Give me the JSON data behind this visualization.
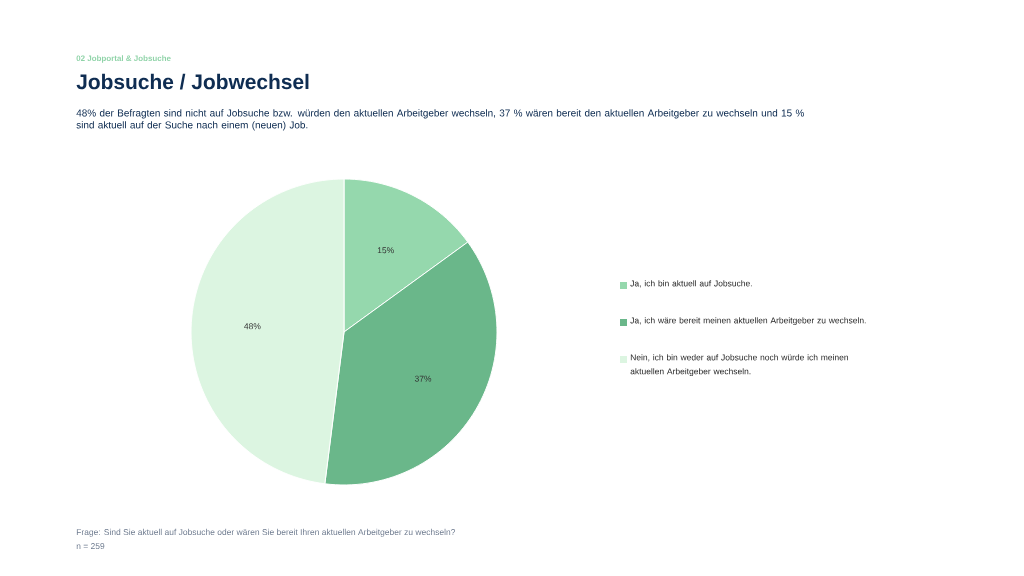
{
  "chart_data": {
    "type": "pie",
    "title": "Jobsuche / Jobwechsel",
    "subtitle": "48% der Befragten sind nicht auf Jobsuche bzw. würden den aktuellen Arbeitgeber wechseln, 37 % wären bereit den aktuellen Arbeitgeber zu wechseln und 15 % sind aktuell auf der Suche nach einem (neuen) Job.",
    "categories": [
      "Ja, ich bin aktuell auf Jobsuche.",
      "Ja, ich wäre bereit meinen aktuellen Arbeitgeber zu wechseln.",
      "Nein, ich bin weder auf Jobsuche noch würde ich meinen aktuellen Arbeitgeber wechseln."
    ],
    "values": [
      15,
      37,
      48
    ],
    "colors": [
      "#95d8ad",
      "#6ab78a",
      "#dcf5e1"
    ],
    "value_labels": [
      "15%",
      "37%",
      "48%"
    ],
    "legend": "right",
    "annotations": [
      "02 Jobportal & Jobsuche",
      "Frage: Sind Sie aktuell auf Jobsuche oder wären Sie bereit Ihren aktuellen Arbeitgeber zu wechseln?",
      "n = 259"
    ]
  }
}
